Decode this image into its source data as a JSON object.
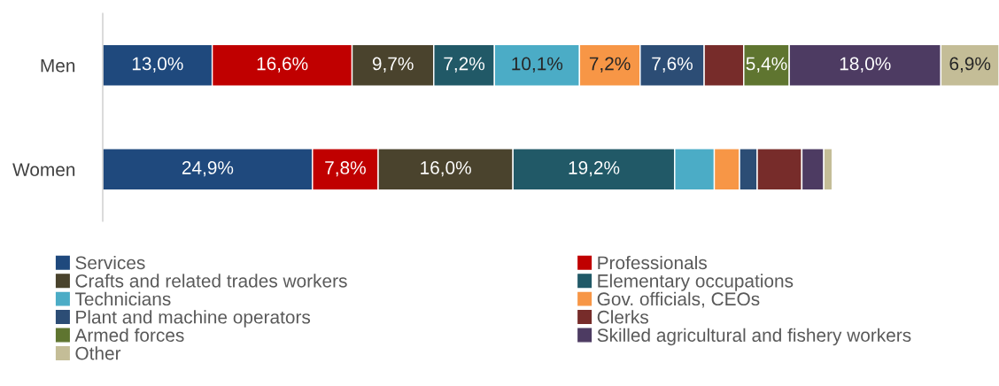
{
  "chart_data": {
    "type": "bar",
    "orientation": "horizontal",
    "stacked": true,
    "categories": [
      "Men",
      "Women"
    ],
    "series": [
      {
        "name": "Services",
        "color": "#1f497d",
        "values": [
          13.0,
          24.9
        ],
        "value_labels": [
          "13,0%",
          "24,9%"
        ]
      },
      {
        "name": "Professionals",
        "color": "#c00000",
        "values": [
          16.6,
          7.8
        ],
        "value_labels": [
          "16,6%",
          "7,8%"
        ]
      },
      {
        "name": "Crafts and related trades workers",
        "color": "#4a432d",
        "values": [
          9.7,
          16.0
        ],
        "value_labels": [
          "9,7%",
          "16,0%"
        ]
      },
      {
        "name": "Elementary occupations",
        "color": "#215967",
        "values": [
          7.2,
          19.2
        ],
        "value_labels": [
          "7,2%",
          "19,2%"
        ]
      },
      {
        "name": "Technicians",
        "color": "#4bacc6",
        "values": [
          10.1,
          4.7
        ],
        "value_labels": [
          "10,1%",
          null
        ]
      },
      {
        "name": "Gov. officials, CEOs",
        "color": "#f79646",
        "values": [
          7.2,
          3.0
        ],
        "value_labels": [
          "7,2%",
          null
        ]
      },
      {
        "name": "Plant and machine operators",
        "color": "#2c4d75",
        "values": [
          7.6,
          2.1
        ],
        "value_labels": [
          "7,6%",
          null
        ]
      },
      {
        "name": "Clerks",
        "color": "#772c2a",
        "values": [
          4.7,
          5.3
        ],
        "value_labels": [
          null,
          null
        ]
      },
      {
        "name": "Armed forces",
        "color": "#5f7530",
        "values": [
          5.4,
          0.0
        ],
        "value_labels": [
          "5,4%",
          null
        ]
      },
      {
        "name": "Skilled agricultural and fishery workers",
        "color": "#4d3b62",
        "values": [
          18.0,
          2.6
        ],
        "value_labels": [
          "18,0%",
          null
        ]
      },
      {
        "name": "Other",
        "color": "#c4bd97",
        "values": [
          6.9,
          1.0
        ],
        "value_labels": [
          "6,9%",
          null
        ]
      }
    ],
    "legend": "bottom",
    "grid": false
  }
}
